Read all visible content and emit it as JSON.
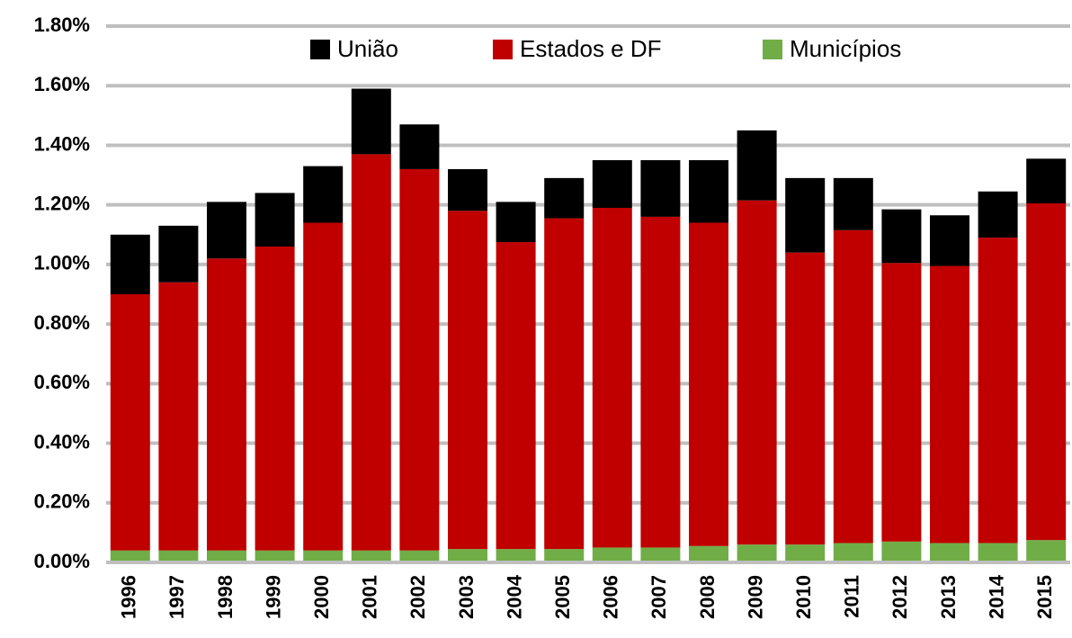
{
  "chart_data": {
    "type": "stacked_bar",
    "categories": [
      "1996",
      "1997",
      "1998",
      "1999",
      "2000",
      "2001",
      "2002",
      "2003",
      "2004",
      "2005",
      "2006",
      "2007",
      "2008",
      "2009",
      "2010",
      "2011",
      "2012",
      "2013",
      "2014",
      "2015"
    ],
    "series": [
      {
        "name": "União",
        "color": "#000000",
        "values": [
          0.2,
          0.19,
          0.19,
          0.18,
          0.19,
          0.22,
          0.15,
          0.14,
          0.135,
          0.135,
          0.16,
          0.19,
          0.21,
          0.235,
          0.25,
          0.175,
          0.18,
          0.17,
          0.155,
          0.15
        ]
      },
      {
        "name": "Estados e DF",
        "color": "#c00000",
        "values": [
          0.86,
          0.9,
          0.98,
          1.02,
          1.1,
          1.33,
          1.28,
          1.135,
          1.03,
          1.11,
          1.14,
          1.11,
          1.085,
          1.155,
          0.98,
          1.05,
          0.935,
          0.93,
          1.025,
          1.13
        ]
      },
      {
        "name": "Municípios",
        "color": "#70ad47",
        "values": [
          0.04,
          0.04,
          0.04,
          0.04,
          0.04,
          0.04,
          0.04,
          0.045,
          0.045,
          0.045,
          0.05,
          0.05,
          0.055,
          0.06,
          0.06,
          0.065,
          0.07,
          0.065,
          0.065,
          0.075
        ]
      }
    ],
    "ylim": [
      0,
      1.8
    ],
    "yticks": [
      {
        "value": 0,
        "label": "0.00%"
      },
      {
        "value": 0.2,
        "label": "0.20%"
      },
      {
        "value": 0.4,
        "label": "0.40%"
      },
      {
        "value": 0.6,
        "label": "0.60%"
      },
      {
        "value": 0.8,
        "label": "0.80%"
      },
      {
        "value": 1.0,
        "label": "1.00%"
      },
      {
        "value": 1.2,
        "label": "1.20%"
      },
      {
        "value": 1.4,
        "label": "1.40%"
      },
      {
        "value": 1.6,
        "label": "1.60%"
      },
      {
        "value": 1.8,
        "label": "1.80%"
      }
    ],
    "grid": true,
    "legend": "top"
  }
}
